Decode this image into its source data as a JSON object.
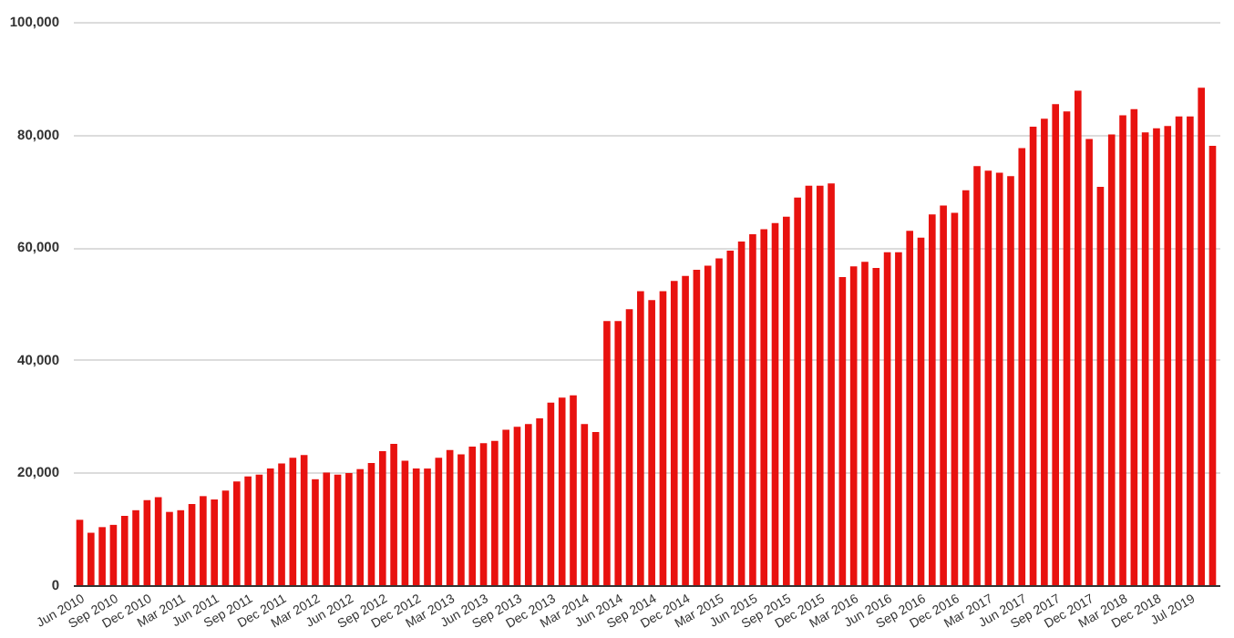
{
  "chart_data": {
    "type": "bar",
    "categories": [
      "Jun 2010",
      null,
      null,
      "Sep 2010",
      null,
      null,
      "Dec 2010",
      null,
      null,
      "Mar 2011",
      null,
      null,
      "Jun 2011",
      null,
      null,
      "Sep 2011",
      null,
      null,
      "Dec 2011",
      null,
      null,
      "Mar 2012",
      null,
      null,
      "Jun 2012",
      null,
      null,
      "Sep 2012",
      null,
      null,
      "Dec 2012",
      null,
      null,
      "Mar 2013",
      null,
      null,
      "Jun 2013",
      null,
      null,
      "Sep 2013",
      null,
      null,
      "Dec 2013",
      null,
      null,
      "Mar 2014",
      null,
      null,
      "Jun 2014",
      null,
      null,
      "Sep 2014",
      null,
      null,
      "Dec 2014",
      null,
      null,
      "Mar 2015",
      null,
      null,
      "Jun 2015",
      null,
      null,
      "Sep 2015",
      null,
      null,
      "Dec 2015",
      null,
      null,
      "Mar 2016",
      null,
      null,
      "Jun 2016",
      null,
      null,
      "Sep 2016",
      null,
      null,
      "Dec 2016",
      null,
      null,
      "Mar 2017",
      null,
      null,
      "Jun 2017",
      null,
      null,
      "Sep 2017",
      null,
      null,
      "Dec 2017",
      null,
      null,
      "Mar 2018",
      null,
      null,
      "Dec 2018",
      null,
      null,
      "Jul 2019",
      null,
      null
    ],
    "values": [
      11600,
      9300,
      10300,
      10700,
      12300,
      13300,
      15100,
      15600,
      13000,
      13300,
      14400,
      15800,
      15200,
      16800,
      18400,
      19300,
      19600,
      20700,
      21600,
      22600,
      23100,
      18800,
      20000,
      19600,
      19900,
      20600,
      21700,
      23800,
      25100,
      22100,
      20700,
      20700,
      22600,
      24000,
      23200,
      24600,
      25200,
      25600,
      27600,
      28100,
      28600,
      29600,
      32400,
      33300,
      33700,
      28600,
      27200,
      46900,
      46900,
      49000,
      52200,
      50600,
      52200,
      54000,
      54900,
      56000,
      56700,
      58000,
      59400,
      61000,
      62300,
      63200,
      64300,
      65400,
      68800,
      70900,
      70900,
      71300,
      54700,
      56600,
      57400,
      56300,
      59100,
      59100,
      62900,
      61700,
      65800,
      67400,
      66100,
      70100,
      74400,
      73600,
      73200,
      72600,
      77600,
      81400,
      82800,
      85400,
      84100,
      87800,
      79200,
      70700,
      80000,
      83400,
      84500,
      80400,
      81100,
      81500,
      83200,
      83200,
      88300,
      78000
    ],
    "color": "#e8120f",
    "ylim": [
      0,
      100000
    ],
    "yticks": [
      {
        "value": 0,
        "label": "0"
      },
      {
        "value": 20000,
        "label": "20,000"
      },
      {
        "value": 40000,
        "label": "40,000"
      },
      {
        "value": 60000,
        "label": "60,000"
      },
      {
        "value": 80000,
        "label": "80,000"
      },
      {
        "value": 100000,
        "label": "100,000"
      }
    ],
    "grid": "y"
  }
}
